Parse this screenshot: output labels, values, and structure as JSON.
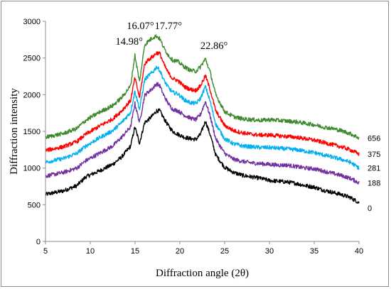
{
  "chart_data": {
    "type": "line",
    "xlabel": "Diffraction angle (2θ)",
    "ylabel": "Diffraction intensity",
    "xlim": [
      5,
      40
    ],
    "ylim": [
      0,
      3000
    ],
    "x_ticks": [
      "5",
      "10",
      "15",
      "20",
      "25",
      "30",
      "35",
      "40"
    ],
    "y_ticks": [
      "0",
      "500",
      "1000",
      "1500",
      "2000",
      "2500",
      "3000"
    ],
    "grid": false,
    "legend": "labels at right end of each curve",
    "annotations": [
      {
        "text": "14.98°",
        "x": 14.98,
        "y": 2560
      },
      {
        "text": "16.07°",
        "x": 16.07,
        "y": 2780
      },
      {
        "text": "17.77°",
        "x": 17.77,
        "y": 2780
      },
      {
        "text": "22.86°",
        "x": 22.86,
        "y": 2490
      }
    ],
    "series": [
      {
        "label": "0",
        "color": "#000000",
        "points": [
          [
            5,
            640
          ],
          [
            7,
            690
          ],
          [
            8.5,
            760
          ],
          [
            9.5,
            880
          ],
          [
            11,
            960
          ],
          [
            12.5,
            1050
          ],
          [
            13.5,
            1150
          ],
          [
            14.5,
            1300
          ],
          [
            14.98,
            1560
          ],
          [
            15.5,
            1340
          ],
          [
            16.07,
            1620
          ],
          [
            16.5,
            1660
          ],
          [
            17.0,
            1720
          ],
          [
            17.4,
            1780
          ],
          [
            17.77,
            1780
          ],
          [
            18.2,
            1680
          ],
          [
            18.7,
            1580
          ],
          [
            19.2,
            1500
          ],
          [
            19.8,
            1460
          ],
          [
            20.5,
            1420
          ],
          [
            21.2,
            1400
          ],
          [
            21.8,
            1390
          ],
          [
            22.3,
            1460
          ],
          [
            22.86,
            1640
          ],
          [
            23.4,
            1450
          ],
          [
            24,
            1180
          ],
          [
            25,
            1010
          ],
          [
            26,
            940
          ],
          [
            27,
            900
          ],
          [
            28,
            880
          ],
          [
            29,
            860
          ],
          [
            30,
            830
          ],
          [
            31,
            820
          ],
          [
            32,
            810
          ],
          [
            33,
            790
          ],
          [
            34,
            760
          ],
          [
            35,
            740
          ],
          [
            36,
            700
          ],
          [
            37,
            670
          ],
          [
            38,
            640
          ],
          [
            39,
            600
          ],
          [
            40,
            530
          ]
        ]
      },
      {
        "label": "188",
        "color": "#7030a0",
        "points": [
          [
            5,
            890
          ],
          [
            7,
            940
          ],
          [
            8.5,
            1000
          ],
          [
            9.5,
            1100
          ],
          [
            11,
            1200
          ],
          [
            12.5,
            1300
          ],
          [
            13.5,
            1420
          ],
          [
            14.5,
            1560
          ],
          [
            14.98,
            1880
          ],
          [
            15.5,
            1620
          ],
          [
            16.07,
            1990
          ],
          [
            16.5,
            2040
          ],
          [
            17.0,
            2090
          ],
          [
            17.4,
            2150
          ],
          [
            17.77,
            2120
          ],
          [
            18.2,
            1990
          ],
          [
            18.7,
            1880
          ],
          [
            19.2,
            1800
          ],
          [
            19.8,
            1780
          ],
          [
            20.5,
            1720
          ],
          [
            21.2,
            1680
          ],
          [
            21.8,
            1660
          ],
          [
            22.3,
            1730
          ],
          [
            22.86,
            1910
          ],
          [
            23.4,
            1700
          ],
          [
            24,
            1400
          ],
          [
            25,
            1200
          ],
          [
            26,
            1120
          ],
          [
            27,
            1090
          ],
          [
            28,
            1070
          ],
          [
            29,
            1060
          ],
          [
            30,
            1050
          ],
          [
            31,
            1040
          ],
          [
            32,
            1040
          ],
          [
            33,
            1020
          ],
          [
            34,
            1000
          ],
          [
            35,
            990
          ],
          [
            36,
            960
          ],
          [
            37,
            930
          ],
          [
            38,
            900
          ],
          [
            39,
            860
          ],
          [
            40,
            800
          ]
        ]
      },
      {
        "label": "281",
        "color": "#00b0f0",
        "points": [
          [
            5,
            1080
          ],
          [
            7,
            1130
          ],
          [
            8.5,
            1200
          ],
          [
            9.5,
            1300
          ],
          [
            11,
            1410
          ],
          [
            12.5,
            1510
          ],
          [
            13.5,
            1620
          ],
          [
            14.5,
            1760
          ],
          [
            14.98,
            2050
          ],
          [
            15.5,
            1800
          ],
          [
            16.07,
            2200
          ],
          [
            16.5,
            2260
          ],
          [
            17.0,
            2310
          ],
          [
            17.4,
            2380
          ],
          [
            17.77,
            2330
          ],
          [
            18.2,
            2200
          ],
          [
            18.7,
            2100
          ],
          [
            19.2,
            2030
          ],
          [
            19.8,
            2010
          ],
          [
            20.5,
            1930
          ],
          [
            21.2,
            1890
          ],
          [
            21.8,
            1880
          ],
          [
            22.3,
            1950
          ],
          [
            22.86,
            2110
          ],
          [
            23.4,
            1900
          ],
          [
            24,
            1600
          ],
          [
            25,
            1400
          ],
          [
            26,
            1330
          ],
          [
            27,
            1300
          ],
          [
            28,
            1290
          ],
          [
            29,
            1280
          ],
          [
            30,
            1280
          ],
          [
            31,
            1270
          ],
          [
            32,
            1260
          ],
          [
            33,
            1250
          ],
          [
            34,
            1230
          ],
          [
            35,
            1210
          ],
          [
            36,
            1180
          ],
          [
            37,
            1150
          ],
          [
            38,
            1120
          ],
          [
            39,
            1080
          ],
          [
            40,
            1000
          ]
        ]
      },
      {
        "label": "375",
        "color": "#ff0000",
        "points": [
          [
            5,
            1240
          ],
          [
            7,
            1290
          ],
          [
            8.5,
            1360
          ],
          [
            9.5,
            1460
          ],
          [
            11,
            1570
          ],
          [
            12.5,
            1670
          ],
          [
            13.5,
            1780
          ],
          [
            14.5,
            1920
          ],
          [
            14.98,
            2230
          ],
          [
            15.5,
            1960
          ],
          [
            16.07,
            2420
          ],
          [
            16.5,
            2480
          ],
          [
            17.0,
            2520
          ],
          [
            17.4,
            2570
          ],
          [
            17.77,
            2560
          ],
          [
            18.2,
            2420
          ],
          [
            18.7,
            2300
          ],
          [
            19.2,
            2220
          ],
          [
            19.8,
            2190
          ],
          [
            20.5,
            2110
          ],
          [
            21.2,
            2070
          ],
          [
            21.8,
            2060
          ],
          [
            22.3,
            2120
          ],
          [
            22.86,
            2260
          ],
          [
            23.4,
            2060
          ],
          [
            24,
            1780
          ],
          [
            25,
            1580
          ],
          [
            26,
            1510
          ],
          [
            27,
            1480
          ],
          [
            28,
            1460
          ],
          [
            29,
            1450
          ],
          [
            30,
            1450
          ],
          [
            31,
            1440
          ],
          [
            32,
            1430
          ],
          [
            33,
            1420
          ],
          [
            34,
            1400
          ],
          [
            35,
            1380
          ],
          [
            36,
            1350
          ],
          [
            37,
            1320
          ],
          [
            38,
            1290
          ],
          [
            39,
            1250
          ],
          [
            40,
            1190
          ]
        ]
      },
      {
        "label": "656",
        "color": "#3f8a2f",
        "points": [
          [
            5,
            1420
          ],
          [
            7,
            1470
          ],
          [
            8.5,
            1540
          ],
          [
            9.5,
            1650
          ],
          [
            11,
            1760
          ],
          [
            12.5,
            1850
          ],
          [
            13.5,
            1960
          ],
          [
            14.5,
            2120
          ],
          [
            14.98,
            2540
          ],
          [
            15.5,
            2170
          ],
          [
            16.07,
            2680
          ],
          [
            16.5,
            2730
          ],
          [
            17.0,
            2780
          ],
          [
            17.4,
            2800
          ],
          [
            17.77,
            2760
          ],
          [
            18.2,
            2640
          ],
          [
            18.7,
            2540
          ],
          [
            19.2,
            2470
          ],
          [
            19.8,
            2450
          ],
          [
            20.5,
            2380
          ],
          [
            21.2,
            2330
          ],
          [
            21.8,
            2320
          ],
          [
            22.3,
            2380
          ],
          [
            22.86,
            2490
          ],
          [
            23.4,
            2300
          ],
          [
            24,
            2000
          ],
          [
            25,
            1770
          ],
          [
            26,
            1700
          ],
          [
            27,
            1670
          ],
          [
            28,
            1660
          ],
          [
            29,
            1650
          ],
          [
            30,
            1660
          ],
          [
            31,
            1650
          ],
          [
            32,
            1640
          ],
          [
            33,
            1630
          ],
          [
            34,
            1610
          ],
          [
            35,
            1590
          ],
          [
            36,
            1560
          ],
          [
            37,
            1540
          ],
          [
            38,
            1510
          ],
          [
            39,
            1470
          ],
          [
            40,
            1410
          ]
        ]
      }
    ]
  }
}
